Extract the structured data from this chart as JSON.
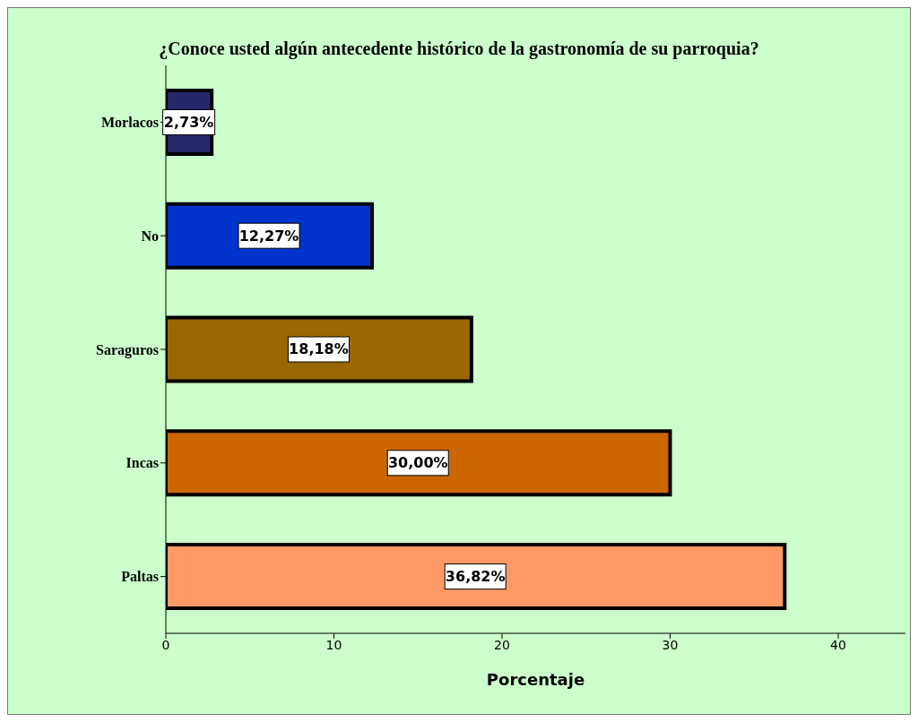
{
  "chart_data": {
    "type": "bar",
    "orientation": "horizontal",
    "title": "¿Conoce usted algún antecedente histórico de la gastronomía de su parroquia?",
    "xlabel": "Porcentaje",
    "categories": [
      "Morlacos",
      "No",
      "Saraguros",
      "Incas",
      "Paltas"
    ],
    "values": [
      2.73,
      12.27,
      18.18,
      30.0,
      36.82
    ],
    "colors": [
      "#25286b",
      "#0033cc",
      "#996600",
      "#cc6600",
      "#ff9966"
    ],
    "value_labels": [
      "2,73%",
      "12,27%",
      "18,18%",
      "30,00%",
      "36,82%"
    ],
    "xlim": [
      0,
      44
    ],
    "xticks": [
      0,
      10,
      20,
      30,
      40
    ]
  }
}
